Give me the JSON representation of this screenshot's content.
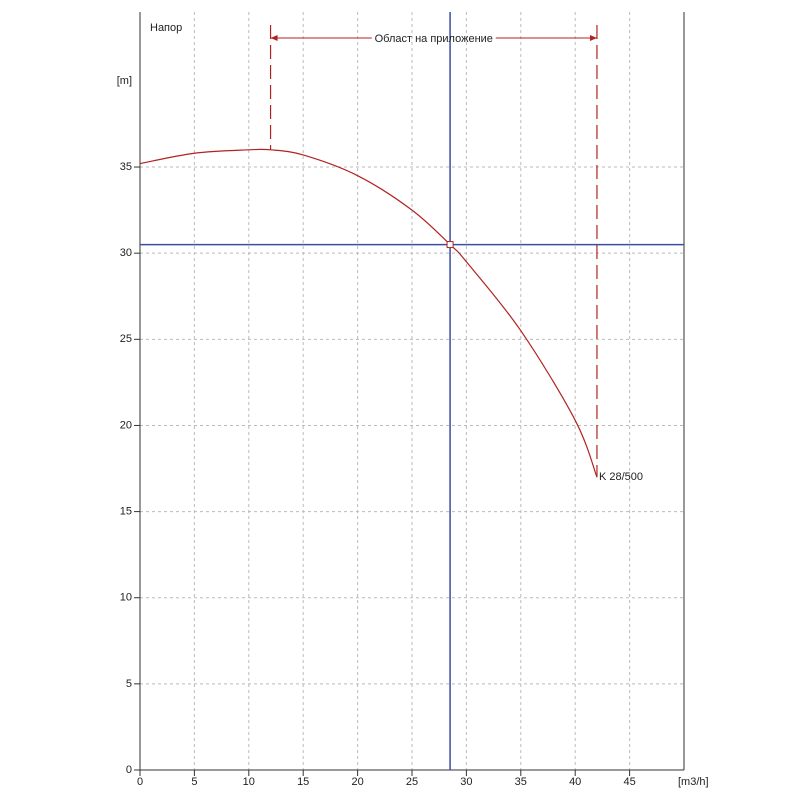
{
  "chart_data": {
    "type": "line",
    "title": "Напор",
    "y_label": "[m]",
    "x_label": "[m3/h]",
    "xlim": [
      0,
      50
    ],
    "ylim": [
      0,
      44
    ],
    "xticks": [
      0,
      5,
      10,
      15,
      20,
      25,
      30,
      35,
      40,
      45
    ],
    "yticks": [
      0,
      5,
      10,
      15,
      20,
      25,
      30,
      35
    ],
    "grid": true,
    "x": [
      0,
      5,
      10,
      12,
      15,
      20,
      25,
      28.5,
      30,
      35,
      40,
      42
    ],
    "series": [
      {
        "name": "K 28/500",
        "color": "#b22222",
        "values": [
          35.2,
          35.8,
          36.0,
          36.0,
          35.7,
          34.5,
          32.5,
          30.5,
          29.5,
          25.5,
          20.3,
          17.0
        ]
      }
    ],
    "range": {
      "label": "Област на приложение",
      "x": [
        12,
        42
      ],
      "color": "#b22222"
    },
    "operating_point": {
      "x": 28.5,
      "y": 30.5,
      "color": "#3b4fa0"
    }
  }
}
